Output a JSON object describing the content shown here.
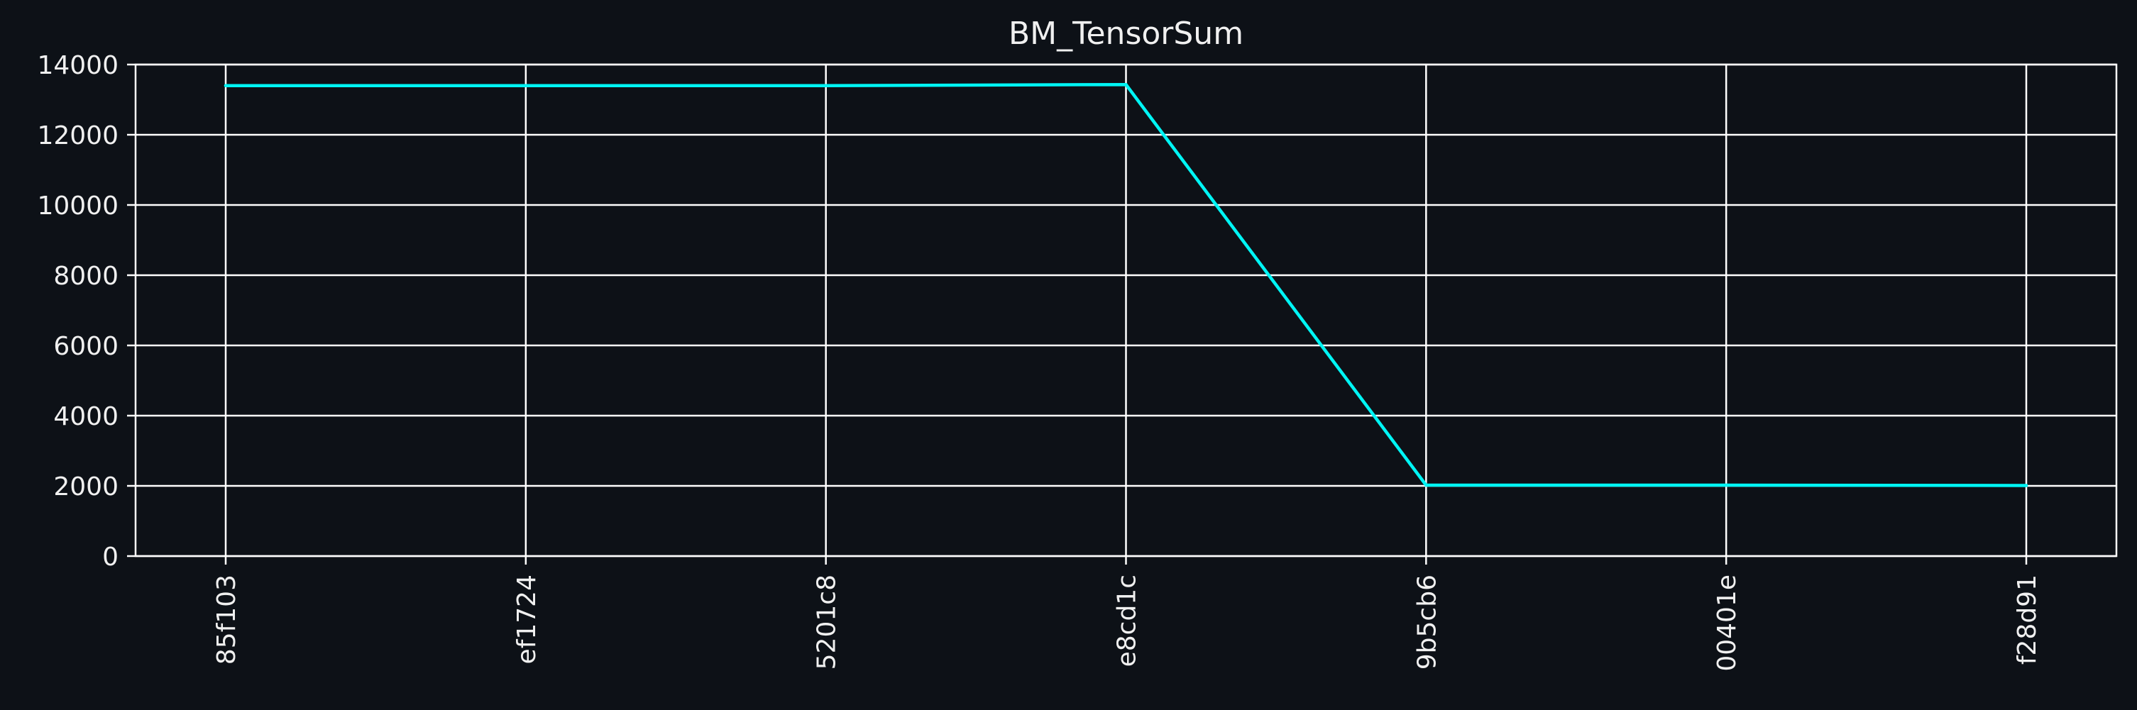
{
  "chart_data": {
    "type": "line",
    "title": "BM_TensorSum",
    "xlabel": "",
    "ylabel": "",
    "categories": [
      "85f103",
      "ef1724",
      "5201c8",
      "e8cd1c",
      "9b5cb6",
      "00401e",
      "f28d91"
    ],
    "series": [
      {
        "values": [
          13400,
          13400,
          13400,
          13430,
          2020,
          2020,
          2010
        ],
        "color": "#00f5f5"
      }
    ],
    "ylim": [
      0,
      14000
    ],
    "yticks": [
      0,
      2000,
      4000,
      6000,
      8000,
      10000,
      12000,
      14000
    ],
    "ytick_labels": [
      "0",
      "2000",
      "4000",
      "6000",
      "8000",
      "10000",
      "12000",
      "14000"
    ],
    "grid": true,
    "background": "#0d1117",
    "grid_color": "#ffffff",
    "text_color": "#f0f0f0"
  }
}
